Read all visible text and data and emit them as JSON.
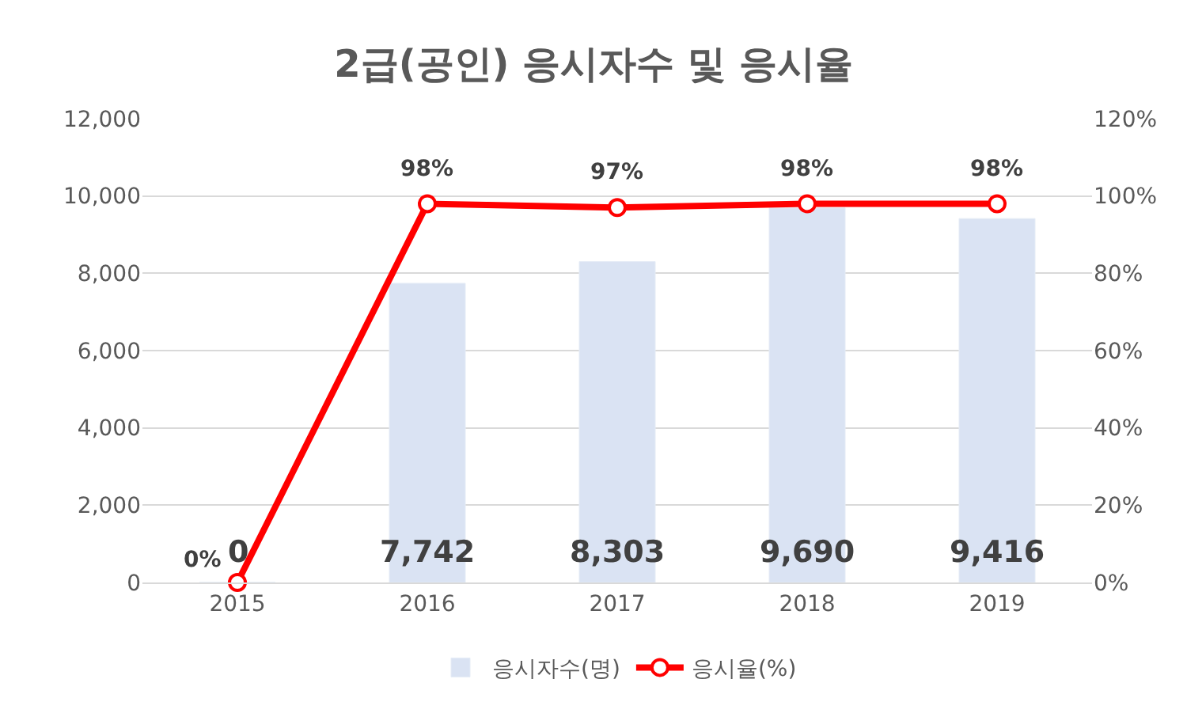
{
  "chart_data": {
    "type": "bar",
    "title": "2급(공인) 응시자수 및 응시율",
    "categories": [
      "2015",
      "2016",
      "2017",
      "2018",
      "2019"
    ],
    "series": [
      {
        "name": "응시자수(명)",
        "color": "#dae3f3",
        "values": [
          0,
          7742,
          8303,
          9690,
          9416
        ],
        "value_labels": [
          "0",
          "7,742",
          "8,303",
          "9,690",
          "9,416"
        ]
      },
      {
        "name": "응시율(%)",
        "type": "line",
        "axis": "y2",
        "color": "#ff0000",
        "marker": "circle",
        "values": [
          0,
          98,
          97,
          98,
          98
        ],
        "value_labels": [
          "0%",
          "98%",
          "97%",
          "98%",
          "98%"
        ]
      }
    ],
    "ylim": [
      0,
      12000
    ],
    "yticks": [
      {
        "value": 0,
        "label": "0"
      },
      {
        "value": 2000,
        "label": "2,000"
      },
      {
        "value": 4000,
        "label": "4,000"
      },
      {
        "value": 6000,
        "label": "6,000"
      },
      {
        "value": 8000,
        "label": "8,000"
      },
      {
        "value": 10000,
        "label": "10,000"
      },
      {
        "value": 12000,
        "label": "12,000"
      }
    ],
    "y2lim": [
      0,
      120
    ],
    "y2ticks": [
      {
        "value": 0,
        "label": "0%"
      },
      {
        "value": 20,
        "label": "20%"
      },
      {
        "value": 40,
        "label": "40%"
      },
      {
        "value": 60,
        "label": "60%"
      },
      {
        "value": 80,
        "label": "80%"
      },
      {
        "value": 100,
        "label": "100%"
      },
      {
        "value": 120,
        "label": "120%"
      }
    ],
    "grid": "y",
    "legend": "bottom"
  }
}
